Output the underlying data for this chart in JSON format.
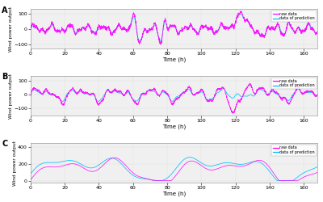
{
  "xlabel": "Time (h)",
  "ylabel": "Wind power output",
  "raw_color": "#FF00FF",
  "pred_color": "#00BFFF",
  "background": "#F0F0F0",
  "xlim": [
    0,
    168
  ],
  "xticks": [
    0,
    20,
    40,
    60,
    80,
    100,
    120,
    140,
    160
  ],
  "panel_A_ylim": [
    -130,
    130
  ],
  "panel_B_ylim": [
    -150,
    130
  ],
  "panel_C_ylim": [
    -20,
    450
  ],
  "panel_A_yticks": [
    -100,
    0,
    100
  ],
  "panel_B_yticks": [
    -100,
    0,
    100
  ],
  "panel_C_yticks": [
    0,
    200,
    400
  ],
  "figsize": [
    4.0,
    2.5
  ],
  "dpi": 100
}
